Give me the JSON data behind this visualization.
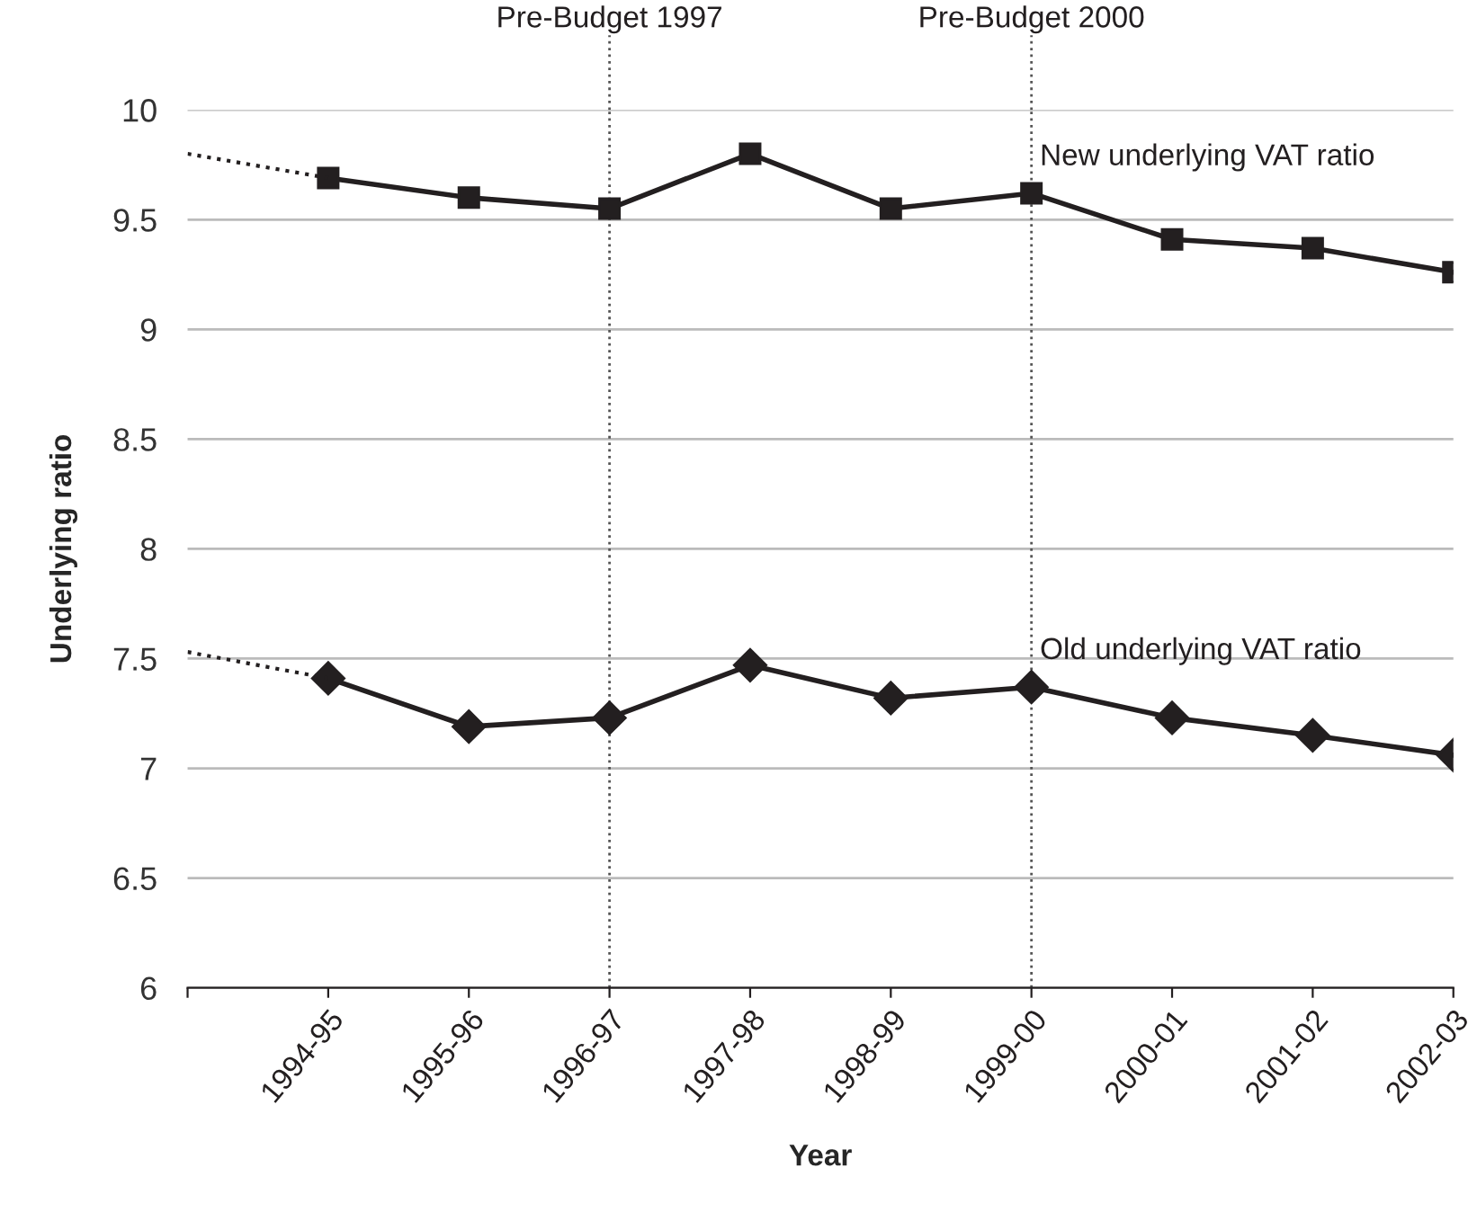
{
  "chart_data": {
    "type": "line",
    "xlabel": "Year",
    "ylabel": "Underlying ratio",
    "categories": [
      null,
      "1994-95",
      "1995-96",
      "1996-97",
      "1997-98",
      "1998-99",
      "1999-00",
      "2000-01",
      "2001-02",
      "2002-03"
    ],
    "series": [
      {
        "name": "New underlying VAT ratio",
        "color": "#231f20",
        "marker": "square",
        "line_style": "solid",
        "values": [
          null,
          9.69,
          9.6,
          9.55,
          9.8,
          9.55,
          9.62,
          9.41,
          9.37,
          9.26
        ]
      },
      {
        "color": "#231f20",
        "marker": "none",
        "line_style": "dotted",
        "values": [
          9.8,
          9.69,
          null,
          null,
          null,
          null,
          null,
          null,
          null,
          null
        ]
      },
      {
        "name": "Old underlying VAT ratio",
        "color": "#231f20",
        "marker": "diamond",
        "line_style": "solid",
        "values": [
          null,
          7.41,
          7.19,
          7.23,
          7.47,
          7.32,
          7.37,
          7.23,
          7.15,
          7.06
        ]
      },
      {
        "color": "#231f20",
        "marker": "none",
        "line_style": "dotted",
        "values": [
          7.53,
          7.41,
          null,
          null,
          null,
          null,
          null,
          null,
          null,
          null
        ]
      }
    ],
    "ylim": [
      6,
      10
    ],
    "yticks": [
      6,
      6.5,
      7,
      7.5,
      8,
      8.5,
      9,
      9.5,
      10
    ],
    "grid": "y",
    "ref_lines": [
      {
        "axis": "x",
        "value": "1996-97",
        "label": "Pre-Budget 1997",
        "color": "#555555",
        "line_style": "dotted"
      },
      {
        "axis": "x",
        "value": "1999-00",
        "label": "Pre-Budget 2000",
        "color": "#555555",
        "line_style": "dotted"
      }
    ]
  }
}
